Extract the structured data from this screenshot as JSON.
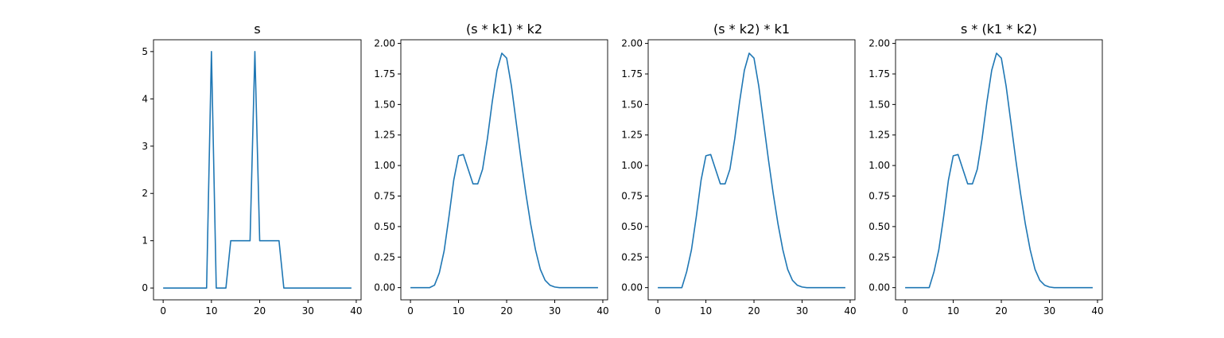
{
  "figure": {
    "background": "#ffffff",
    "line_color": "#1f77b4"
  },
  "chart_data": [
    {
      "type": "line",
      "title": "s",
      "xlabel": "",
      "ylabel": "",
      "xlim": [
        -2,
        41
      ],
      "ylim": [
        -0.25,
        5.25
      ],
      "xticks": [
        0,
        10,
        20,
        30,
        40
      ],
      "xtick_labels": [
        "0",
        "10",
        "20",
        "30",
        "40"
      ],
      "yticks": [
        0,
        1,
        2,
        3,
        4,
        5
      ],
      "ytick_labels": [
        "0",
        "1",
        "2",
        "3",
        "4",
        "5"
      ],
      "grid": false,
      "series": [
        {
          "x": [
            0,
            1,
            2,
            3,
            4,
            5,
            6,
            7,
            8,
            9,
            10,
            11,
            12,
            13,
            14,
            15,
            16,
            17,
            18,
            19,
            20,
            21,
            22,
            23,
            24,
            25,
            26,
            27,
            28,
            29,
            30,
            31,
            32,
            33,
            34,
            35,
            36,
            37,
            38,
            39
          ],
          "y": [
            0,
            0,
            0,
            0,
            0,
            0,
            0,
            0,
            0,
            0,
            5,
            0,
            0,
            0,
            1,
            1,
            1,
            1,
            1,
            5,
            1,
            1,
            1,
            1,
            1,
            0,
            0,
            0,
            0,
            0,
            0,
            0,
            0,
            0,
            0,
            0,
            0,
            0,
            0,
            0
          ]
        }
      ]
    },
    {
      "type": "line",
      "title": "(s * k1) * k2",
      "xlabel": "",
      "ylabel": "",
      "xlim": [
        -2,
        41
      ],
      "ylim": [
        -0.1,
        2.03
      ],
      "xticks": [
        0,
        10,
        20,
        30,
        40
      ],
      "xtick_labels": [
        "0",
        "10",
        "20",
        "30",
        "40"
      ],
      "yticks": [
        0,
        0.25,
        0.5,
        0.75,
        1.0,
        1.25,
        1.5,
        1.75,
        2.0
      ],
      "ytick_labels": [
        "0.00",
        "0.25",
        "0.50",
        "0.75",
        "1.00",
        "1.25",
        "1.50",
        "1.75",
        "2.00"
      ],
      "grid": false,
      "series": [
        {
          "x": [
            0,
            1,
            2,
            3,
            4,
            5,
            6,
            7,
            8,
            9,
            10,
            11,
            12,
            13,
            14,
            15,
            16,
            17,
            18,
            19,
            20,
            21,
            22,
            23,
            24,
            25,
            26,
            27,
            28,
            29,
            30,
            31,
            32,
            33,
            34,
            35,
            36,
            37,
            38,
            39
          ],
          "y": [
            0,
            0,
            0,
            0,
            0,
            0.02,
            0.12,
            0.3,
            0.58,
            0.88,
            1.08,
            1.09,
            0.97,
            0.85,
            0.85,
            0.97,
            1.22,
            1.52,
            1.78,
            1.92,
            1.88,
            1.65,
            1.35,
            1.05,
            0.77,
            0.52,
            0.31,
            0.15,
            0.06,
            0.02,
            0.005,
            0,
            0,
            0,
            0,
            0,
            0,
            0,
            0,
            0
          ]
        }
      ]
    },
    {
      "type": "line",
      "title": "(s * k2) * k1",
      "xlabel": "",
      "ylabel": "",
      "xlim": [
        -2,
        41
      ],
      "ylim": [
        -0.1,
        2.03
      ],
      "xticks": [
        0,
        10,
        20,
        30,
        40
      ],
      "xtick_labels": [
        "0",
        "10",
        "20",
        "30",
        "40"
      ],
      "yticks": [
        0,
        0.25,
        0.5,
        0.75,
        1.0,
        1.25,
        1.5,
        1.75,
        2.0
      ],
      "ytick_labels": [
        "0.00",
        "0.25",
        "0.50",
        "0.75",
        "1.00",
        "1.25",
        "1.50",
        "1.75",
        "2.00"
      ],
      "grid": false,
      "series": [
        {
          "x": [
            0,
            1,
            2,
            3,
            4,
            5,
            6,
            7,
            8,
            9,
            10,
            11,
            12,
            13,
            14,
            15,
            16,
            17,
            18,
            19,
            20,
            21,
            22,
            23,
            24,
            25,
            26,
            27,
            28,
            29,
            30,
            31,
            32,
            33,
            34,
            35,
            36,
            37,
            38,
            39
          ],
          "y": [
            0,
            0,
            0,
            0,
            0,
            0,
            0.13,
            0.31,
            0.58,
            0.88,
            1.08,
            1.09,
            0.97,
            0.85,
            0.85,
            0.97,
            1.22,
            1.52,
            1.78,
            1.92,
            1.88,
            1.65,
            1.35,
            1.05,
            0.77,
            0.52,
            0.31,
            0.15,
            0.06,
            0.02,
            0.005,
            0,
            0,
            0,
            0,
            0,
            0,
            0,
            0,
            0
          ]
        }
      ]
    },
    {
      "type": "line",
      "title": "s * (k1 * k2)",
      "xlabel": "",
      "ylabel": "",
      "xlim": [
        -2,
        41
      ],
      "ylim": [
        -0.1,
        2.03
      ],
      "xticks": [
        0,
        10,
        20,
        30,
        40
      ],
      "xtick_labels": [
        "0",
        "10",
        "20",
        "30",
        "40"
      ],
      "yticks": [
        0,
        0.25,
        0.5,
        0.75,
        1.0,
        1.25,
        1.5,
        1.75,
        2.0
      ],
      "ytick_labels": [
        "0.00",
        "0.25",
        "0.50",
        "0.75",
        "1.00",
        "1.25",
        "1.50",
        "1.75",
        "2.00"
      ],
      "grid": false,
      "series": [
        {
          "x": [
            0,
            1,
            2,
            3,
            4,
            5,
            6,
            7,
            8,
            9,
            10,
            11,
            12,
            13,
            14,
            15,
            16,
            17,
            18,
            19,
            20,
            21,
            22,
            23,
            24,
            25,
            26,
            27,
            28,
            29,
            30,
            31,
            32,
            33,
            34,
            35,
            36,
            37,
            38,
            39
          ],
          "y": [
            0,
            0,
            0,
            0,
            0,
            0,
            0.13,
            0.31,
            0.58,
            0.88,
            1.08,
            1.09,
            0.97,
            0.85,
            0.85,
            0.97,
            1.22,
            1.52,
            1.78,
            1.92,
            1.88,
            1.65,
            1.35,
            1.05,
            0.77,
            0.52,
            0.31,
            0.15,
            0.06,
            0.02,
            0.005,
            0,
            0,
            0,
            0,
            0,
            0,
            0,
            0,
            0
          ]
        }
      ]
    }
  ]
}
